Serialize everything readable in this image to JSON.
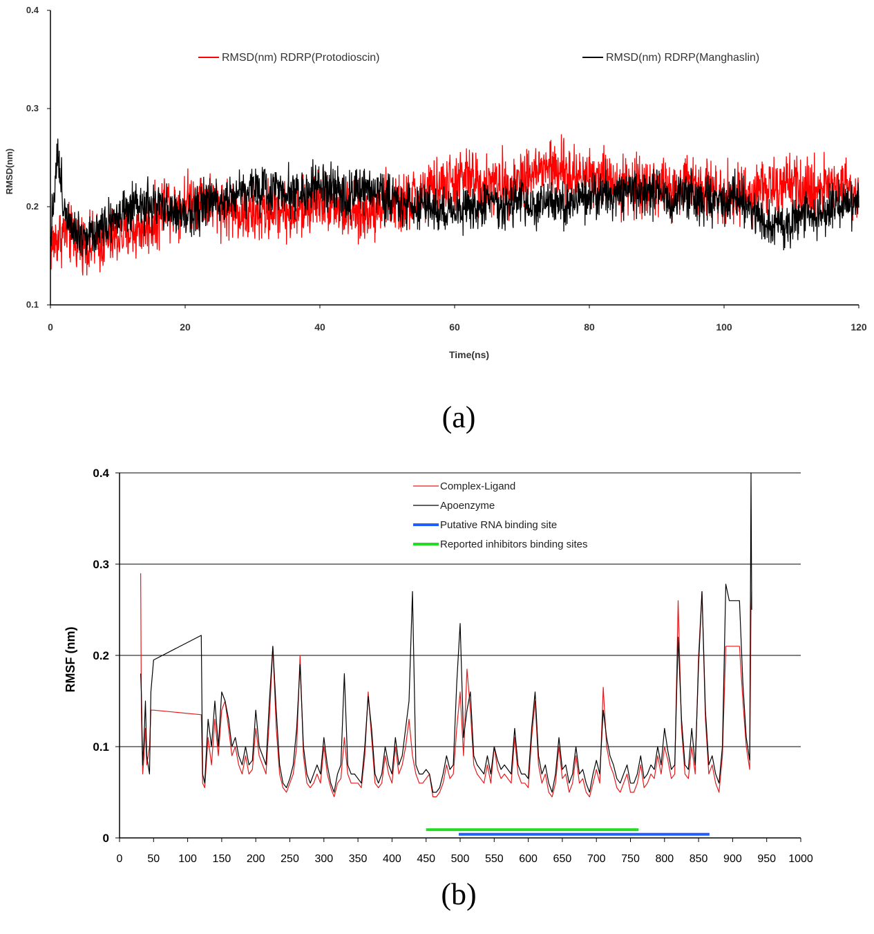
{
  "panels": [
    {
      "label": "(a)"
    },
    {
      "label": "(b)"
    }
  ],
  "chart_data": [
    {
      "type": "line",
      "xlabel": "Time(ns)",
      "ylabel": "RMSD(nm)",
      "xlim": [
        0,
        120
      ],
      "ylim": [
        0.1,
        0.4
      ],
      "xticks": [
        0,
        20,
        40,
        60,
        80,
        100,
        120
      ],
      "yticks": [
        0.1,
        0.2,
        0.3,
        0.4
      ],
      "grid": false,
      "legend_position": "top",
      "series": [
        {
          "name": "RMSD(nm) RDRP(Protodioscin)",
          "color": "#ff0000",
          "x": [
            0,
            2,
            4,
            6,
            8,
            10,
            12,
            14,
            16,
            17,
            18,
            20,
            22,
            24,
            26,
            28,
            30,
            32,
            34,
            36,
            38,
            40,
            42,
            44,
            46,
            48,
            50,
            52,
            54,
            56,
            58,
            60,
            62,
            64,
            66,
            68,
            70,
            72,
            74,
            76,
            78,
            80,
            82,
            84,
            86,
            88,
            90,
            92,
            94,
            96,
            98,
            100,
            102,
            104,
            106,
            108,
            110,
            112,
            114,
            116,
            118,
            120
          ],
          "y": [
            0.16,
            0.175,
            0.165,
            0.16,
            0.165,
            0.17,
            0.175,
            0.18,
            0.185,
            0.21,
            0.2,
            0.205,
            0.21,
            0.205,
            0.2,
            0.195,
            0.19,
            0.195,
            0.2,
            0.19,
            0.2,
            0.21,
            0.205,
            0.195,
            0.19,
            0.2,
            0.205,
            0.2,
            0.21,
            0.215,
            0.22,
            0.225,
            0.23,
            0.225,
            0.22,
            0.225,
            0.23,
            0.235,
            0.24,
            0.235,
            0.23,
            0.235,
            0.23,
            0.225,
            0.22,
            0.225,
            0.22,
            0.215,
            0.22,
            0.225,
            0.22,
            0.215,
            0.21,
            0.215,
            0.22,
            0.215,
            0.22,
            0.215,
            0.22,
            0.225,
            0.22,
            0.215
          ],
          "noise_amplitude": 0.025
        },
        {
          "name": "RMSD(nm) RDRP(Manghaslin)",
          "color": "#000000",
          "x": [
            0,
            1,
            2,
            4,
            6,
            8,
            10,
            12,
            14,
            16,
            18,
            20,
            22,
            24,
            26,
            28,
            30,
            32,
            34,
            36,
            38,
            40,
            42,
            44,
            46,
            48,
            50,
            52,
            54,
            56,
            58,
            60,
            62,
            64,
            66,
            68,
            70,
            72,
            74,
            76,
            78,
            80,
            82,
            84,
            86,
            88,
            90,
            92,
            94,
            96,
            98,
            100,
            102,
            104,
            106,
            108,
            110,
            112,
            114,
            116,
            118,
            120
          ],
          "y": [
            0.17,
            0.255,
            0.2,
            0.175,
            0.17,
            0.185,
            0.19,
            0.195,
            0.2,
            0.2,
            0.195,
            0.19,
            0.2,
            0.205,
            0.21,
            0.215,
            0.22,
            0.215,
            0.22,
            0.215,
            0.215,
            0.22,
            0.215,
            0.21,
            0.215,
            0.22,
            0.21,
            0.205,
            0.2,
            0.2,
            0.195,
            0.195,
            0.2,
            0.2,
            0.205,
            0.2,
            0.205,
            0.2,
            0.205,
            0.2,
            0.205,
            0.21,
            0.215,
            0.215,
            0.21,
            0.215,
            0.22,
            0.205,
            0.21,
            0.21,
            0.205,
            0.205,
            0.21,
            0.195,
            0.185,
            0.18,
            0.185,
            0.19,
            0.195,
            0.2,
            0.205,
            0.205
          ],
          "noise_amplitude": 0.02
        }
      ]
    },
    {
      "type": "line",
      "xlabel": "",
      "ylabel": "RMSF (nm)",
      "xlim": [
        0,
        1000
      ],
      "ylim": [
        0,
        0.4
      ],
      "xticks": [
        0,
        50,
        100,
        150,
        200,
        250,
        300,
        350,
        400,
        450,
        500,
        550,
        600,
        650,
        700,
        750,
        800,
        850,
        900,
        950,
        1000
      ],
      "yticks": [
        0,
        0.1,
        0.2,
        0.3,
        0.4
      ],
      "yticklabels": [
        "0",
        "0.1",
        "0.2",
        "0.3",
        "0.4"
      ],
      "grid": true,
      "legend_position": "top-center",
      "series": [
        {
          "name": "Complex-Ligand",
          "color": "#e31a1c",
          "x": [
            31,
            32,
            34,
            36,
            38,
            40,
            42,
            44,
            46,
            50,
            120,
            122,
            125,
            130,
            135,
            140,
            145,
            150,
            155,
            160,
            165,
            170,
            175,
            180,
            185,
            190,
            195,
            200,
            205,
            210,
            215,
            220,
            225,
            230,
            235,
            240,
            245,
            250,
            255,
            260,
            265,
            270,
            275,
            280,
            285,
            290,
            295,
            300,
            305,
            310,
            315,
            320,
            325,
            330,
            335,
            340,
            345,
            350,
            355,
            360,
            365,
            370,
            375,
            380,
            385,
            390,
            395,
            400,
            405,
            410,
            415,
            420,
            425,
            430,
            435,
            440,
            445,
            450,
            455,
            460,
            465,
            470,
            475,
            480,
            485,
            490,
            495,
            500,
            505,
            510,
            515,
            520,
            525,
            530,
            535,
            540,
            545,
            550,
            555,
            560,
            565,
            570,
            575,
            580,
            585,
            590,
            595,
            600,
            605,
            610,
            615,
            620,
            625,
            630,
            635,
            640,
            645,
            650,
            655,
            660,
            665,
            670,
            675,
            680,
            685,
            690,
            695,
            700,
            705,
            710,
            715,
            720,
            725,
            730,
            735,
            740,
            745,
            750,
            755,
            760,
            765,
            770,
            775,
            780,
            785,
            790,
            795,
            800,
            805,
            810,
            815,
            820,
            825,
            830,
            835,
            840,
            845,
            850,
            855,
            860,
            865,
            870,
            875,
            880,
            885,
            890,
            895,
            900,
            905,
            910,
            915,
            920,
            925,
            927,
            928
          ],
          "y": [
            0.29,
            0.14,
            0.07,
            0.09,
            0.12,
            0.08,
            0.09,
            0.1,
            0.14,
            0.14,
            0.135,
            0.06,
            0.055,
            0.11,
            0.08,
            0.13,
            0.09,
            0.14,
            0.15,
            0.12,
            0.09,
            0.1,
            0.08,
            0.07,
            0.09,
            0.07,
            0.075,
            0.12,
            0.09,
            0.08,
            0.07,
            0.13,
            0.21,
            0.12,
            0.07,
            0.055,
            0.05,
            0.06,
            0.07,
            0.1,
            0.2,
            0.09,
            0.06,
            0.055,
            0.06,
            0.07,
            0.06,
            0.1,
            0.07,
            0.055,
            0.045,
            0.06,
            0.065,
            0.11,
            0.07,
            0.06,
            0.06,
            0.06,
            0.055,
            0.09,
            0.16,
            0.11,
            0.06,
            0.055,
            0.06,
            0.09,
            0.07,
            0.06,
            0.1,
            0.07,
            0.08,
            0.1,
            0.13,
            0.09,
            0.07,
            0.06,
            0.06,
            0.065,
            0.07,
            0.045,
            0.045,
            0.05,
            0.06,
            0.08,
            0.065,
            0.07,
            0.12,
            0.16,
            0.09,
            0.185,
            0.14,
            0.08,
            0.07,
            0.065,
            0.06,
            0.08,
            0.06,
            0.1,
            0.075,
            0.065,
            0.07,
            0.065,
            0.06,
            0.11,
            0.07,
            0.06,
            0.06,
            0.055,
            0.11,
            0.15,
            0.08,
            0.06,
            0.07,
            0.05,
            0.045,
            0.06,
            0.1,
            0.065,
            0.07,
            0.05,
            0.06,
            0.09,
            0.06,
            0.065,
            0.05,
            0.045,
            0.06,
            0.075,
            0.06,
            0.165,
            0.1,
            0.08,
            0.07,
            0.055,
            0.05,
            0.06,
            0.07,
            0.05,
            0.05,
            0.06,
            0.08,
            0.055,
            0.06,
            0.07,
            0.065,
            0.09,
            0.07,
            0.1,
            0.085,
            0.065,
            0.07,
            0.26,
            0.12,
            0.07,
            0.065,
            0.1,
            0.07,
            0.2,
            0.27,
            0.13,
            0.07,
            0.08,
            0.06,
            0.05,
            0.09,
            0.21,
            0.21,
            0.21,
            0.21,
            0.21,
            0.15,
            0.1,
            0.075,
            0.25,
            0.27
          ]
        },
        {
          "name": "Apoenzyme",
          "color": "#000000",
          "x": [
            31,
            32,
            34,
            36,
            38,
            40,
            42,
            44,
            46,
            50,
            120,
            122,
            125,
            130,
            135,
            140,
            145,
            150,
            155,
            160,
            165,
            170,
            175,
            180,
            185,
            190,
            195,
            200,
            205,
            210,
            215,
            220,
            225,
            230,
            235,
            240,
            245,
            250,
            255,
            260,
            265,
            270,
            275,
            280,
            285,
            290,
            295,
            300,
            305,
            310,
            315,
            320,
            325,
            330,
            335,
            340,
            345,
            350,
            355,
            360,
            365,
            370,
            375,
            380,
            385,
            390,
            395,
            400,
            405,
            410,
            415,
            420,
            425,
            430,
            435,
            440,
            445,
            450,
            455,
            460,
            465,
            470,
            475,
            480,
            485,
            490,
            495,
            500,
            505,
            510,
            515,
            520,
            525,
            530,
            535,
            540,
            545,
            550,
            555,
            560,
            565,
            570,
            575,
            580,
            585,
            590,
            595,
            600,
            605,
            610,
            615,
            620,
            625,
            630,
            635,
            640,
            645,
            650,
            655,
            660,
            665,
            670,
            675,
            680,
            685,
            690,
            695,
            700,
            705,
            710,
            715,
            720,
            725,
            730,
            735,
            740,
            745,
            750,
            755,
            760,
            765,
            770,
            775,
            780,
            785,
            790,
            795,
            800,
            805,
            810,
            815,
            820,
            825,
            830,
            835,
            840,
            845,
            850,
            855,
            860,
            865,
            870,
            875,
            880,
            885,
            890,
            895,
            900,
            905,
            910,
            915,
            920,
            925,
            927,
            928
          ],
          "y": [
            0.18,
            0.16,
            0.08,
            0.11,
            0.15,
            0.09,
            0.08,
            0.07,
            0.16,
            0.195,
            0.222,
            0.07,
            0.06,
            0.13,
            0.1,
            0.15,
            0.1,
            0.16,
            0.15,
            0.13,
            0.1,
            0.11,
            0.09,
            0.08,
            0.1,
            0.08,
            0.085,
            0.14,
            0.1,
            0.09,
            0.08,
            0.15,
            0.21,
            0.14,
            0.08,
            0.06,
            0.055,
            0.065,
            0.08,
            0.12,
            0.19,
            0.1,
            0.07,
            0.06,
            0.07,
            0.08,
            0.07,
            0.11,
            0.08,
            0.06,
            0.05,
            0.07,
            0.08,
            0.18,
            0.08,
            0.07,
            0.07,
            0.065,
            0.06,
            0.1,
            0.155,
            0.12,
            0.07,
            0.06,
            0.07,
            0.1,
            0.08,
            0.07,
            0.11,
            0.08,
            0.09,
            0.12,
            0.15,
            0.27,
            0.08,
            0.07,
            0.07,
            0.075,
            0.07,
            0.05,
            0.05,
            0.055,
            0.07,
            0.09,
            0.075,
            0.08,
            0.17,
            0.235,
            0.11,
            0.14,
            0.16,
            0.09,
            0.08,
            0.075,
            0.07,
            0.09,
            0.07,
            0.1,
            0.085,
            0.075,
            0.08,
            0.075,
            0.07,
            0.12,
            0.08,
            0.07,
            0.07,
            0.065,
            0.12,
            0.16,
            0.09,
            0.07,
            0.08,
            0.06,
            0.05,
            0.07,
            0.11,
            0.075,
            0.08,
            0.06,
            0.07,
            0.1,
            0.07,
            0.075,
            0.06,
            0.05,
            0.07,
            0.085,
            0.07,
            0.14,
            0.11,
            0.09,
            0.08,
            0.065,
            0.06,
            0.07,
            0.08,
            0.06,
            0.06,
            0.07,
            0.09,
            0.065,
            0.07,
            0.08,
            0.075,
            0.1,
            0.08,
            0.12,
            0.095,
            0.075,
            0.08,
            0.22,
            0.13,
            0.08,
            0.075,
            0.12,
            0.08,
            0.19,
            0.27,
            0.14,
            0.08,
            0.09,
            0.07,
            0.06,
            0.1,
            0.278,
            0.26,
            0.26,
            0.26,
            0.26,
            0.17,
            0.11,
            0.085,
            0.4,
            0.25
          ]
        },
        {
          "name": "Putative RNA binding site",
          "color": "#1f5fff",
          "x": [
            498,
            866
          ],
          "y": [
            0.004,
            0.004
          ]
        },
        {
          "name": "Reported inhibitors binding sites",
          "color": "#22dd22",
          "x": [
            450,
            762
          ],
          "y": [
            0.009,
            0.009
          ]
        }
      ]
    }
  ]
}
